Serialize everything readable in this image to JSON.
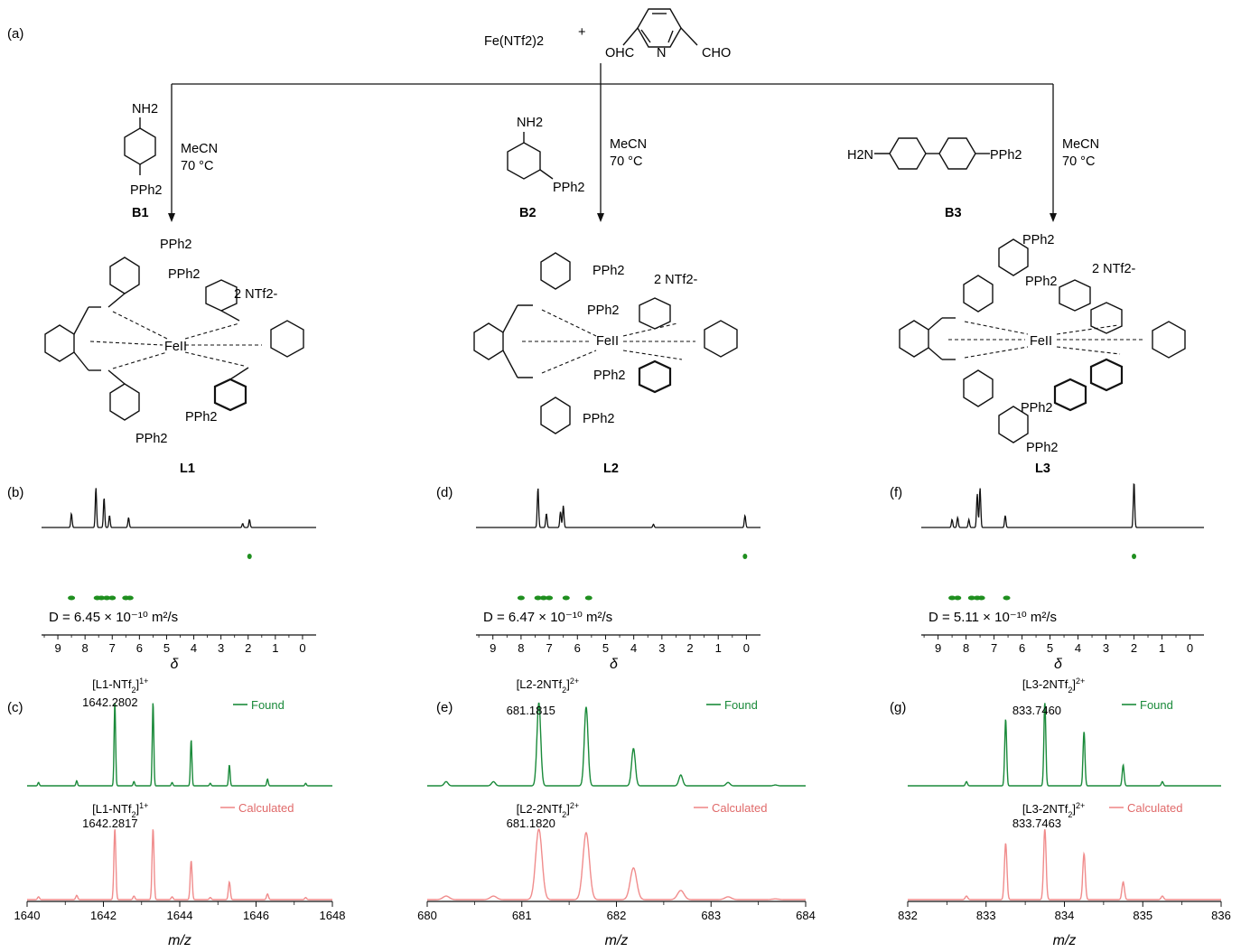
{
  "scheme": {
    "panel_label": "(a)",
    "metal_salt": "Fe(NTf2)2",
    "plus": "+",
    "aldehyde": {
      "left": "OHC",
      "right": "CHO",
      "ring_atom": "N"
    },
    "conditions": [
      "MeCN",
      "70 °C"
    ],
    "counterion": "2 NTf2-",
    "metal": "FeII",
    "building_blocks": [
      {
        "id": "B1",
        "amine": "NH2",
        "phosphine": "PPh2"
      },
      {
        "id": "B2",
        "amine": "NH2",
        "phosphine": "PPh2"
      },
      {
        "id": "B3",
        "amine": "H2N",
        "phosphine": "PPh2"
      }
    ],
    "products": [
      "L1",
      "L2",
      "L3"
    ]
  },
  "nmr": [
    {
      "panel": "(b)",
      "D_text": "D = 6.45 × 10⁻¹⁰ m²/s",
      "peaks": [
        [
          8.5,
          0.35
        ],
        [
          7.6,
          1.0
        ],
        [
          7.3,
          0.75
        ],
        [
          7.1,
          0.3
        ],
        [
          6.4,
          0.25
        ],
        [
          2.2,
          0.1
        ],
        [
          1.95,
          0.2
        ]
      ],
      "dosy_spots": [
        8.5,
        7.55,
        7.4,
        7.2,
        7.0,
        6.5,
        6.35
      ]
    },
    {
      "panel": "(d)",
      "D_text": "D = 6.47 × 10⁻¹⁰ m²/s",
      "peaks": [
        [
          7.4,
          1.0
        ],
        [
          7.1,
          0.35
        ],
        [
          6.6,
          0.4
        ],
        [
          6.5,
          0.55
        ],
        [
          3.3,
          0.08
        ],
        [
          0.05,
          0.3
        ]
      ],
      "dosy_spots": [
        8.0,
        7.4,
        7.2,
        7.0,
        6.4,
        5.6
      ]
    },
    {
      "panel": "(f)",
      "D_text": "D = 5.11 × 10⁻¹⁰ m²/s",
      "peaks": [
        [
          8.5,
          0.2
        ],
        [
          8.3,
          0.25
        ],
        [
          7.9,
          0.2
        ],
        [
          7.6,
          0.85
        ],
        [
          7.5,
          1.0
        ],
        [
          6.6,
          0.3
        ],
        [
          2.0,
          1.15
        ]
      ],
      "dosy_spots": [
        8.5,
        8.3,
        7.8,
        7.6,
        7.45,
        6.55
      ]
    }
  ],
  "nmr_axis": {
    "ticks": [
      "9",
      "8",
      "7",
      "6",
      "5",
      "4",
      "3",
      "2",
      "1",
      "0"
    ],
    "label": "δ"
  },
  "ms": [
    {
      "panel": "(c)",
      "found_label": "[L1-NTf2]1+",
      "found_mz": "1642.2802",
      "calc_label": "[L1-NTf2]1+",
      "calc_mz": "1642.2817",
      "xlim": [
        1640,
        1648
      ],
      "ticks": [
        "1640",
        "1642",
        "1644",
        "1646",
        "1648"
      ],
      "peaks": [
        [
          1640.3,
          0.04
        ],
        [
          1641.3,
          0.06
        ],
        [
          1642.3,
          1.0
        ],
        [
          1642.8,
          0.05
        ],
        [
          1643.3,
          1.0
        ],
        [
          1643.8,
          0.04
        ],
        [
          1644.3,
          0.55
        ],
        [
          1644.8,
          0.03
        ],
        [
          1645.3,
          0.25
        ],
        [
          1646.3,
          0.08
        ],
        [
          1647.3,
          0.03
        ]
      ],
      "width": 0.04
    },
    {
      "panel": "(e)",
      "found_label": "[L2-2NTf2]2+",
      "found_mz": "681.1815",
      "calc_label": "[L2-2NTf2]2+",
      "calc_mz": "681.1820",
      "xlim": [
        680,
        684
      ],
      "ticks": [
        "680",
        "681",
        "682",
        "683",
        "684"
      ],
      "peaks": [
        [
          680.2,
          0.05
        ],
        [
          680.7,
          0.05
        ],
        [
          681.18,
          1.0
        ],
        [
          681.68,
          0.95
        ],
        [
          682.18,
          0.45
        ],
        [
          682.68,
          0.13
        ],
        [
          683.18,
          0.04
        ],
        [
          683.68,
          0.01
        ]
      ],
      "width": 0.04
    },
    {
      "panel": "(g)",
      "found_label": "[L3-2NTf2]2+",
      "found_mz": "833.7460",
      "calc_label": "[L3-2NTf2]2+",
      "calc_mz": "833.7463",
      "xlim": [
        832,
        836
      ],
      "ticks": [
        "832",
        "833",
        "834",
        "835",
        "836"
      ],
      "peaks": [
        [
          832.75,
          0.05
        ],
        [
          833.25,
          0.8
        ],
        [
          833.75,
          1.0
        ],
        [
          834.25,
          0.65
        ],
        [
          834.75,
          0.25
        ],
        [
          835.25,
          0.05
        ]
      ],
      "width": 0.025
    }
  ],
  "ms_axis_label": "m/z",
  "legend": {
    "found": "Found",
    "calculated": "Calculated"
  },
  "colors": {
    "found": "#1a8a3a",
    "calculated": "#f08c8c",
    "dosy": "#1f8f1f",
    "line": "#111111"
  }
}
